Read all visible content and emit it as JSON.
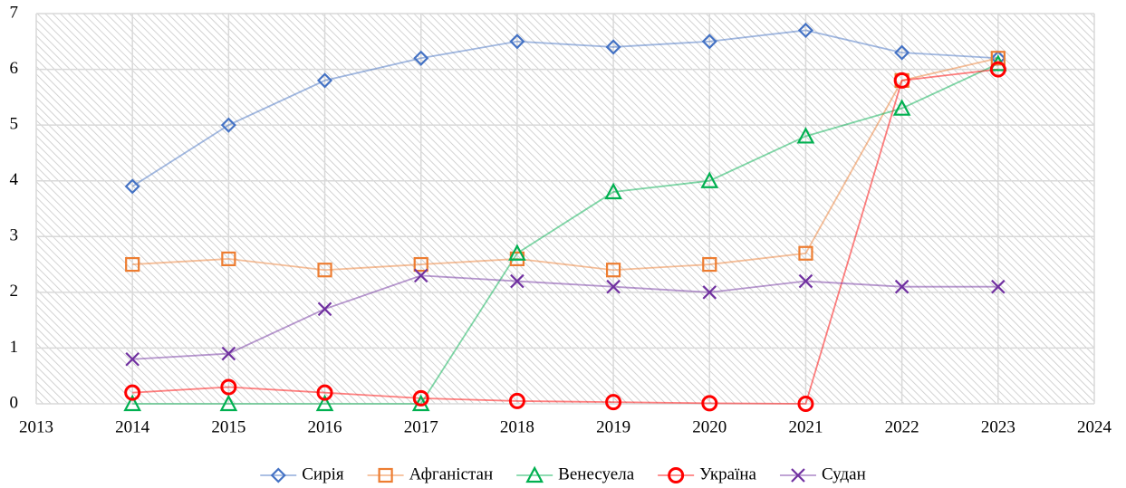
{
  "chart_data": {
    "type": "line",
    "x": [
      2014,
      2015,
      2016,
      2017,
      2018,
      2019,
      2020,
      2021,
      2022,
      2023
    ],
    "xlim": [
      2013,
      2024
    ],
    "xticks": [
      2013,
      2014,
      2015,
      2016,
      2017,
      2018,
      2019,
      2020,
      2021,
      2022,
      2023,
      2024
    ],
    "ylim": [
      0,
      7
    ],
    "yticks": [
      0,
      1,
      2,
      3,
      4,
      5,
      6,
      7
    ],
    "grid": true,
    "legend": "bottom",
    "series": [
      {
        "name": "Сирія",
        "color": "#4472c4",
        "marker": "diamond",
        "values": [
          3.9,
          5.0,
          5.8,
          6.2,
          6.5,
          6.4,
          6.5,
          6.7,
          6.3,
          6.2
        ]
      },
      {
        "name": "Афганістан",
        "color": "#ed7d31",
        "marker": "square",
        "values": [
          2.5,
          2.6,
          2.4,
          2.5,
          2.6,
          2.4,
          2.5,
          2.7,
          5.8,
          6.2
        ]
      },
      {
        "name": "Венесуела",
        "color": "#00b050",
        "marker": "triangle",
        "values": [
          0,
          0,
          0,
          0,
          2.7,
          3.8,
          4.0,
          4.8,
          5.3,
          6.1
        ]
      },
      {
        "name": "Україна",
        "color": "#ff0000",
        "marker": "circle",
        "values": [
          0.2,
          0.3,
          0.2,
          0.1,
          0.05,
          0.03,
          0.01,
          0,
          5.8,
          6.0
        ]
      },
      {
        "name": "Судан",
        "color": "#7030a0",
        "marker": "x",
        "values": [
          0.8,
          0.9,
          1.7,
          2.3,
          2.2,
          2.1,
          2.0,
          2.2,
          2.1,
          2.1
        ]
      }
    ]
  }
}
